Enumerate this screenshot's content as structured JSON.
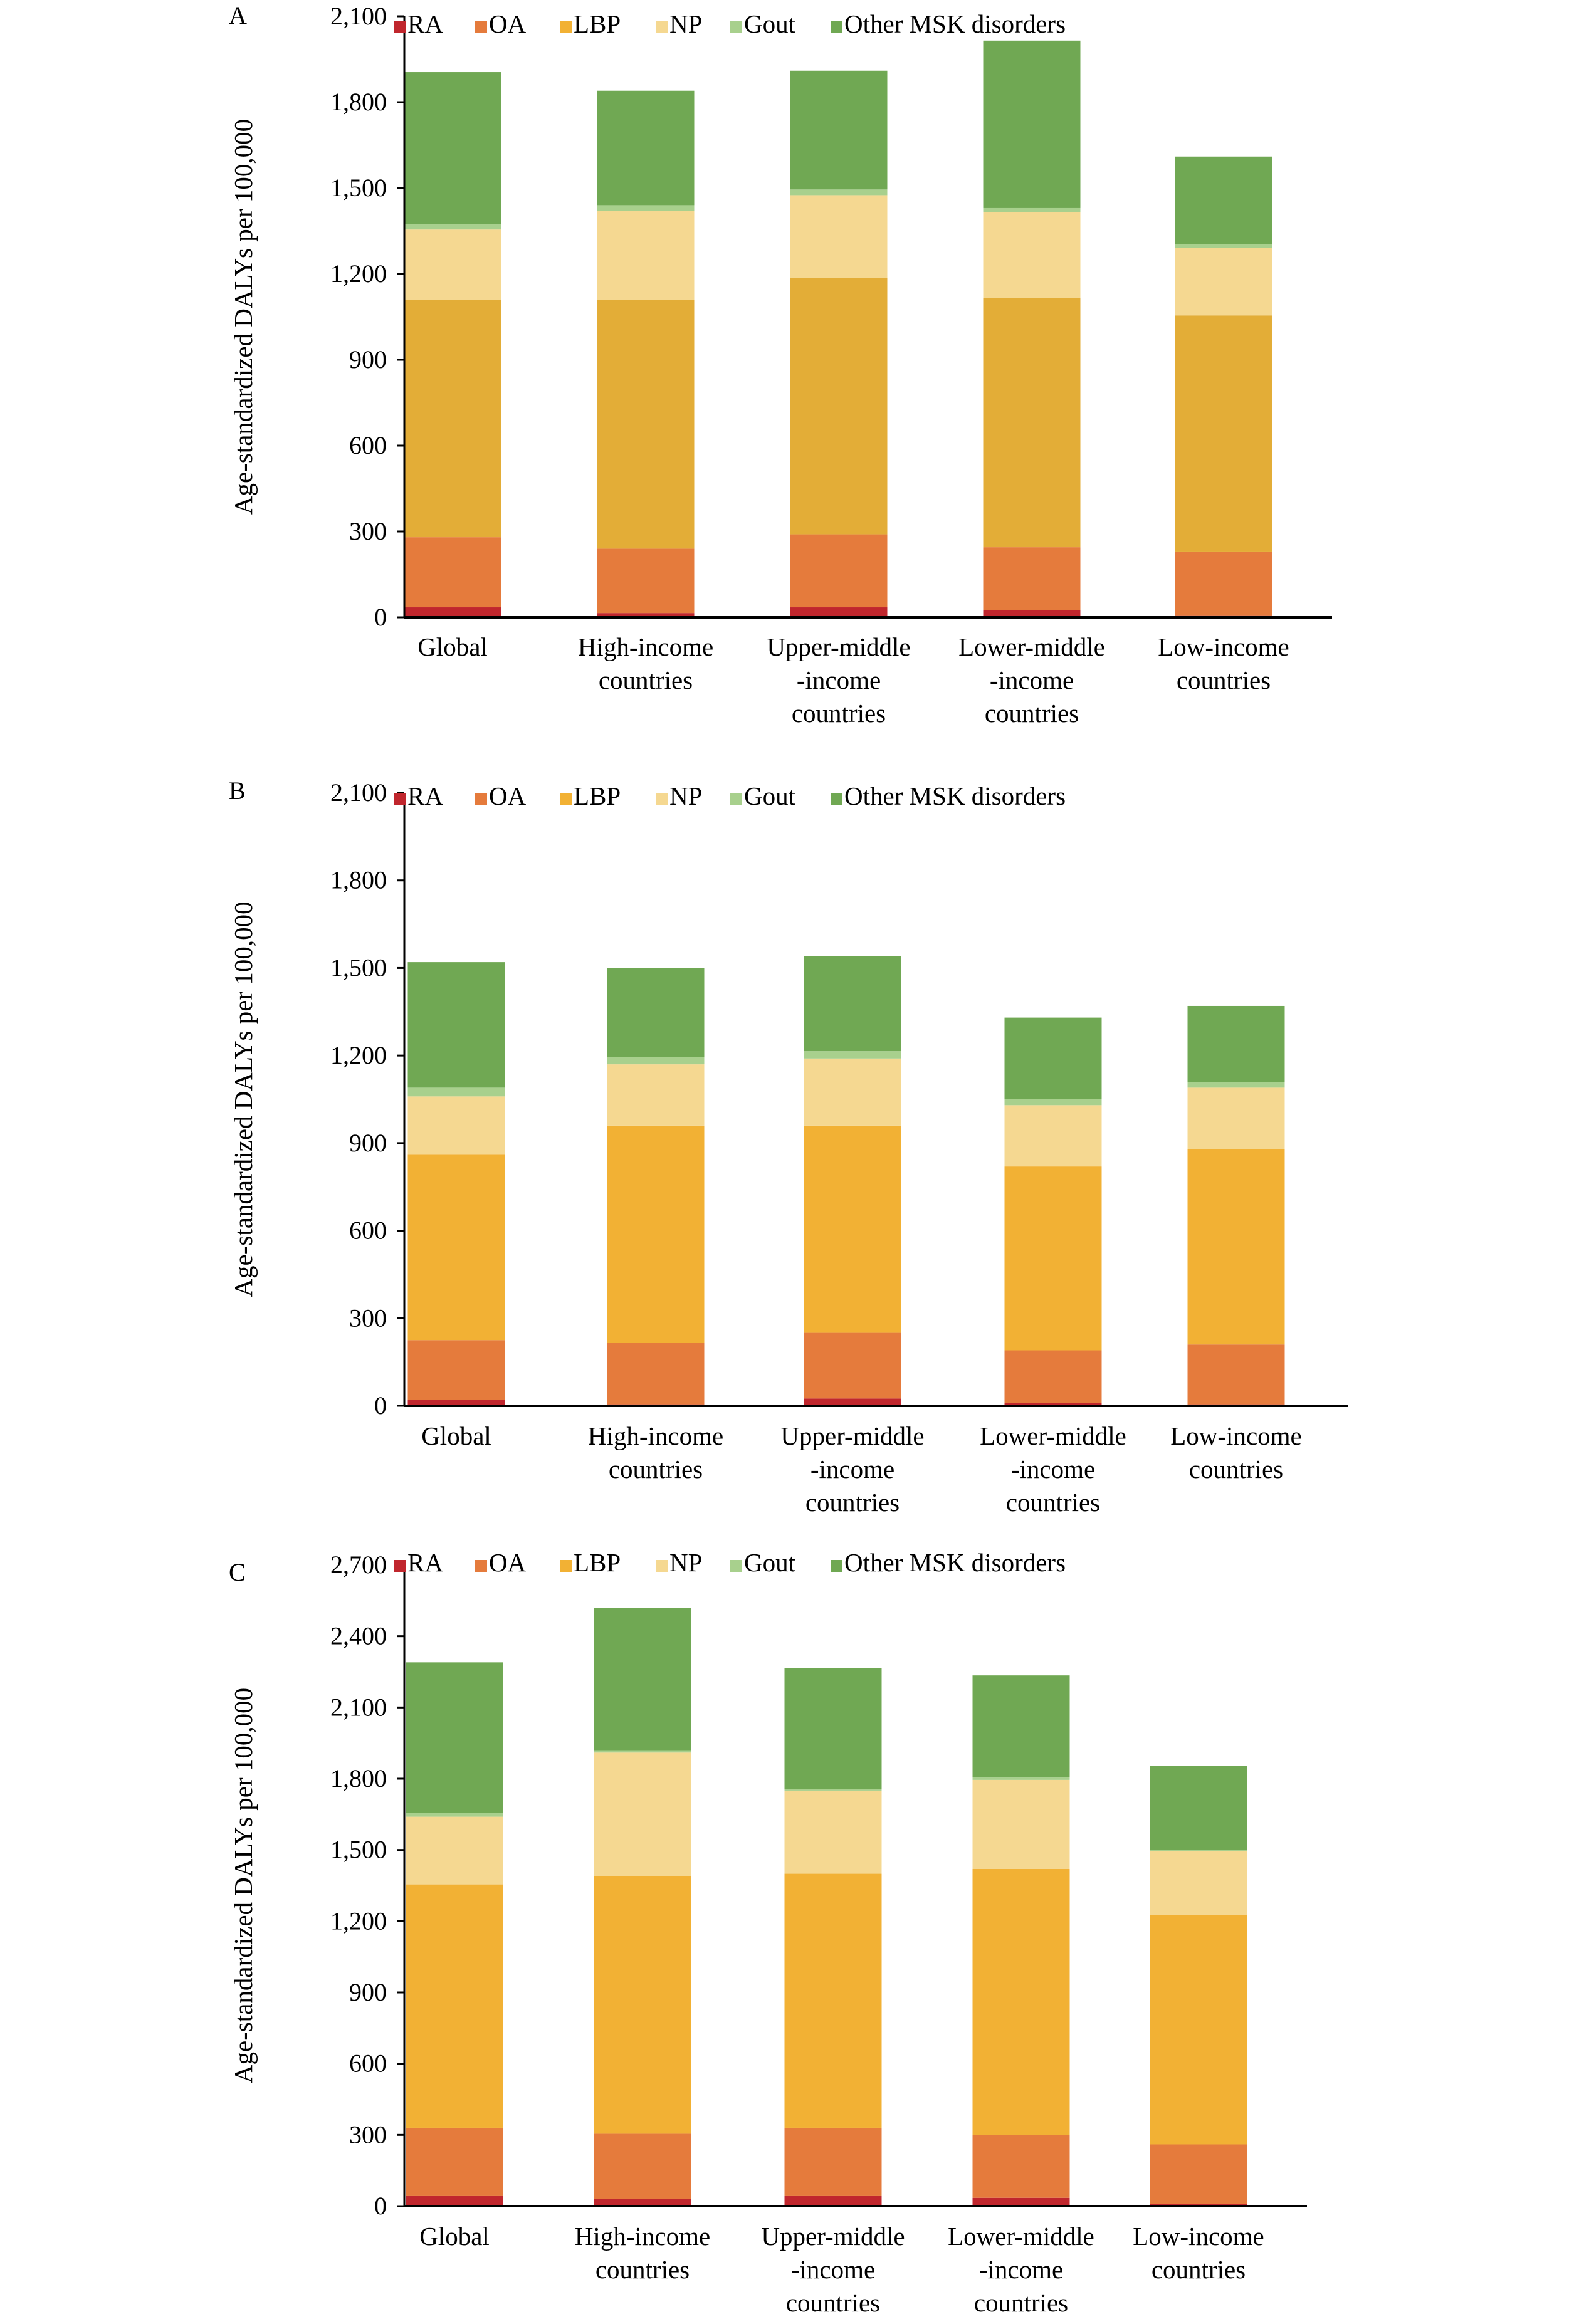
{
  "legend": [
    {
      "key": "ra",
      "label": "RA",
      "color": "#C0262D"
    },
    {
      "key": "oa",
      "label": "OA",
      "color": "#E57B3C"
    },
    {
      "key": "lbp",
      "label": "LBP",
      "color": "#F2B134"
    },
    {
      "key": "np",
      "label": "NP",
      "color": "#F5D891"
    },
    {
      "key": "gout",
      "label": "Gout",
      "color": "#A8D08D"
    },
    {
      "key": "other",
      "label": "Other MSK disorders",
      "color": "#70A853"
    }
  ],
  "chart_data": [
    {
      "type": "bar",
      "stacked": true,
      "panel": "A",
      "ylabel": "Age-standardized DALYs per 100,000",
      "ylim": [
        0,
        2100
      ],
      "yticks": [
        "0",
        "300",
        "600",
        "900",
        "1,200",
        "1,500",
        "1,800",
        "2,100"
      ],
      "lbp_color": "#E3AD37",
      "categories": [
        [
          "Global"
        ],
        [
          "High-income",
          "countries"
        ],
        [
          "Upper-middle",
          "-income",
          "countries"
        ],
        [
          "Lower-middle",
          "-income",
          "countries"
        ],
        [
          "Low-income",
          "countries"
        ]
      ],
      "series": [
        {
          "name": "RA",
          "values": [
            35,
            15,
            35,
            25,
            5
          ]
        },
        {
          "name": "OA",
          "values": [
            245,
            225,
            255,
            220,
            225
          ]
        },
        {
          "name": "LBP",
          "values": [
            830,
            870,
            895,
            870,
            825
          ]
        },
        {
          "name": "NP",
          "values": [
            245,
            310,
            290,
            300,
            235
          ]
        },
        {
          "name": "Gout",
          "values": [
            20,
            20,
            20,
            15,
            15
          ]
        },
        {
          "name": "Other MSK disorders",
          "values": [
            530,
            400,
            415,
            585,
            305
          ]
        }
      ]
    },
    {
      "type": "bar",
      "stacked": true,
      "panel": "B",
      "ylabel": "Age-standardized DALYs per 100,000",
      "ylim": [
        0,
        2100
      ],
      "yticks": [
        "0",
        "300",
        "600",
        "900",
        "1,200",
        "1,500",
        "1,800",
        "2,100"
      ],
      "categories": [
        [
          "Global"
        ],
        [
          "High-income",
          "countries"
        ],
        [
          "Upper-middle",
          "-income",
          "countries"
        ],
        [
          "Lower-middle",
          "-income",
          "countries"
        ],
        [
          "Low-income",
          "countries"
        ]
      ],
      "series": [
        {
          "name": "RA",
          "values": [
            20,
            5,
            25,
            10,
            5
          ]
        },
        {
          "name": "OA",
          "values": [
            205,
            210,
            225,
            180,
            205
          ]
        },
        {
          "name": "LBP",
          "values": [
            635,
            745,
            710,
            630,
            670
          ]
        },
        {
          "name": "NP",
          "values": [
            200,
            210,
            230,
            210,
            210
          ]
        },
        {
          "name": "Gout",
          "values": [
            30,
            25,
            25,
            20,
            20
          ]
        },
        {
          "name": "Other MSK disorders",
          "values": [
            430,
            305,
            325,
            280,
            260
          ]
        }
      ]
    },
    {
      "type": "bar",
      "stacked": true,
      "panel": "C",
      "ylabel": "Age-standardized DALYs per 100,000",
      "ylim": [
        0,
        2700
      ],
      "yticks": [
        "0",
        "300",
        "600",
        "900",
        "1,200",
        "1,500",
        "1,800",
        "2,100",
        "2,400",
        "2,700"
      ],
      "categories": [
        [
          "Global"
        ],
        [
          "High-income",
          "countries"
        ],
        [
          "Upper-middle",
          "-income",
          "countries"
        ],
        [
          "Lower-middle",
          "-income",
          "countries"
        ],
        [
          "Low-income",
          "countries"
        ]
      ],
      "series": [
        {
          "name": "RA",
          "values": [
            45,
            30,
            45,
            35,
            10
          ]
        },
        {
          "name": "OA",
          "values": [
            285,
            275,
            285,
            265,
            250
          ]
        },
        {
          "name": "LBP",
          "values": [
            1025,
            1085,
            1070,
            1120,
            965
          ]
        },
        {
          "name": "NP",
          "values": [
            285,
            520,
            350,
            375,
            270
          ]
        },
        {
          "name": "Gout",
          "values": [
            15,
            10,
            5,
            10,
            5
          ]
        },
        {
          "name": "Other MSK disorders",
          "values": [
            635,
            600,
            510,
            430,
            355
          ]
        }
      ]
    }
  ]
}
